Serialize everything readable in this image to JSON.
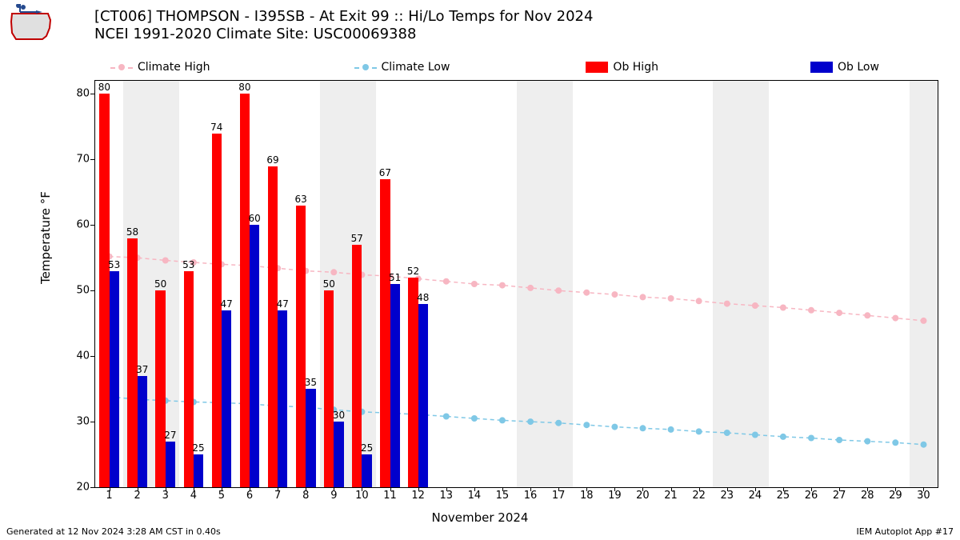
{
  "title_line1": "[CT006] THOMPSON - I395SB - At Exit 99  :: Hi/Lo Temps for Nov 2024",
  "title_line2": "NCEI 1991-2020 Climate Site: USC00069388",
  "ylabel": "Temperature °F",
  "xlabel": "November 2024",
  "footer_left": "Generated at 12 Nov 2024 3:28 AM CST in 0.40s",
  "footer_right": "IEM Autoplot App #17",
  "legend": {
    "climate_high": "Climate High",
    "climate_low": "Climate Low",
    "ob_high": "Ob High",
    "ob_low": "Ob Low"
  },
  "colors": {
    "climate_high": "#f7b6c2",
    "climate_low": "#7fc8e6",
    "ob_high": "#ff0000",
    "ob_low": "#0000cc",
    "weekend_band": "#eeeeee",
    "axis": "#000000",
    "background": "#ffffff"
  },
  "chart": {
    "type": "bar+line",
    "ylim": [
      20,
      82
    ],
    "yticks": [
      20,
      30,
      40,
      50,
      60,
      70,
      80
    ],
    "xlim": [
      0.5,
      30.5
    ],
    "xticks": [
      1,
      2,
      3,
      4,
      5,
      6,
      7,
      8,
      9,
      10,
      11,
      12,
      13,
      14,
      15,
      16,
      17,
      18,
      19,
      20,
      21,
      22,
      23,
      24,
      25,
      26,
      27,
      28,
      29,
      30
    ],
    "weekend_days": [
      2,
      3,
      9,
      10,
      16,
      17,
      23,
      24,
      30
    ],
    "bar_width": 0.35,
    "ob_high": {
      "days": [
        1,
        2,
        3,
        4,
        5,
        6,
        7,
        8,
        9,
        10,
        11,
        12
      ],
      "values": [
        80,
        58,
        50,
        53,
        74,
        80,
        69,
        63,
        50,
        57,
        67,
        52
      ]
    },
    "ob_low": {
      "days": [
        1,
        2,
        3,
        4,
        5,
        6,
        7,
        8,
        9,
        10,
        11,
        12
      ],
      "values": [
        53,
        37,
        27,
        25,
        47,
        60,
        47,
        35,
        30,
        25,
        51,
        48
      ]
    },
    "climate_high": {
      "days": [
        1,
        2,
        3,
        4,
        5,
        6,
        7,
        8,
        9,
        10,
        11,
        12,
        13,
        14,
        15,
        16,
        17,
        18,
        19,
        20,
        21,
        22,
        23,
        24,
        25,
        26,
        27,
        28,
        29,
        30
      ],
      "values": [
        55.2,
        55.0,
        54.6,
        54.3,
        54.0,
        53.8,
        53.4,
        53.0,
        52.8,
        52.4,
        52.2,
        51.8,
        51.4,
        51.0,
        50.8,
        50.4,
        50.0,
        49.7,
        49.4,
        49.0,
        48.8,
        48.4,
        48.0,
        47.7,
        47.4,
        47.0,
        46.6,
        46.2,
        45.8,
        45.4
      ]
    },
    "climate_low": {
      "days": [
        1,
        2,
        3,
        4,
        5,
        6,
        7,
        8,
        9,
        10,
        11,
        12,
        13,
        14,
        15,
        16,
        17,
        18,
        19,
        20,
        21,
        22,
        23,
        24,
        25,
        26,
        27,
        28,
        29,
        30
      ],
      "values": [
        33.8,
        33.4,
        33.2,
        33.0,
        32.9,
        32.7,
        32.4,
        32.2,
        31.8,
        31.5,
        31.3,
        31.1,
        30.8,
        30.5,
        30.2,
        30.0,
        29.8,
        29.5,
        29.2,
        29.0,
        28.8,
        28.5,
        28.3,
        28.0,
        27.7,
        27.5,
        27.2,
        27.0,
        26.8,
        26.5
      ]
    },
    "marker_radius": 4,
    "line_width": 1.5,
    "tick_fontsize": 13,
    "label_fontsize": 15,
    "title_fontsize": 18,
    "barlabel_fontsize": 12
  }
}
